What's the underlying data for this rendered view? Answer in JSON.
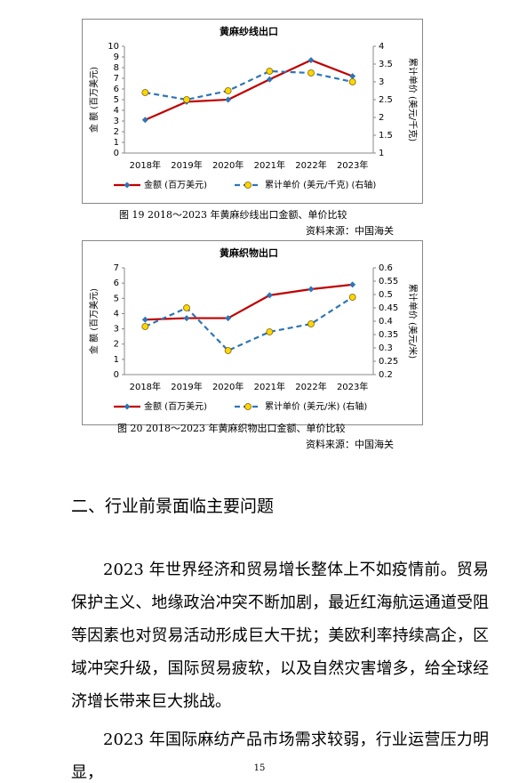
{
  "chart_data": [
    {
      "type": "line",
      "title": "黄麻纱线出口",
      "categories": [
        "2018年",
        "2019年",
        "2020年",
        "2021年",
        "2022年",
        "2023年"
      ],
      "ylabel": "金 额 (百万美元)",
      "y2label": "累计单价 (美元/千克)",
      "ylim": [
        0,
        10
      ],
      "yticks": [
        0,
        1,
        2,
        3,
        4,
        5,
        6,
        7,
        8,
        9,
        10
      ],
      "y2lim": [
        1,
        4
      ],
      "y2ticks": [
        1,
        1.5,
        2,
        2.5,
        3,
        3.5,
        4
      ],
      "series": [
        {
          "name": "金额 (百万美元)",
          "color": "#c00000",
          "values": [
            3.1,
            4.8,
            5.0,
            6.9,
            8.7,
            7.2
          ]
        },
        {
          "name": "累计单价 (美元/千克) (右轴)",
          "color": "#2e75b6",
          "axis": "y2",
          "values": [
            2.7,
            2.5,
            2.75,
            3.3,
            3.25,
            3.0
          ]
        }
      ]
    },
    {
      "type": "line",
      "title": "黄麻织物出口",
      "categories": [
        "2018年",
        "2019年",
        "2020年",
        "2021年",
        "2022年",
        "2023年"
      ],
      "ylabel": "金 额 (百万美元)",
      "y2label": "累计单价 (美元/米)",
      "ylim": [
        0,
        7
      ],
      "yticks": [
        0,
        1,
        2,
        3,
        4,
        5,
        6,
        7
      ],
      "y2lim": [
        0.2,
        0.6
      ],
      "y2ticks": [
        0.2,
        0.25,
        0.3,
        0.35,
        0.4,
        0.45,
        0.5,
        0.55,
        0.6
      ],
      "series": [
        {
          "name": "金额 (百万美元)",
          "color": "#c00000",
          "values": [
            3.6,
            3.7,
            3.7,
            5.2,
            5.6,
            5.9
          ]
        },
        {
          "name": "累计单价 (美元/米) (右轴)",
          "color": "#2e75b6",
          "axis": "y2",
          "values": [
            0.38,
            0.45,
            0.29,
            0.36,
            0.39,
            0.49
          ]
        }
      ]
    }
  ],
  "captions": [
    {
      "figure": "图 19  2018～2023 年黄麻纱线出口金额、单价比较",
      "source": "资料来源：中国海关"
    },
    {
      "figure": "图 20   2018～2023 年黄麻织物出口金额、单价比较",
      "source": "资料来源：中国海关"
    }
  ],
  "section": {
    "heading": "二、行业前景面临主要问题",
    "paragraphs": [
      "2023 年世界经济和贸易增长整体上不如疫情前。贸易保护主义、地缘政治冲突不断加剧，最近红海航运通道受阻等因素也对贸易活动形成巨大干扰；美欧利率持续高企，区域冲突升级，国际贸易疲软，以及自然灾害增多，给全球经济增长带来巨大挑战。",
      "2023 年国际麻纺产品市场需求较弱，行业运营压力明显，"
    ]
  },
  "page_number": "15"
}
